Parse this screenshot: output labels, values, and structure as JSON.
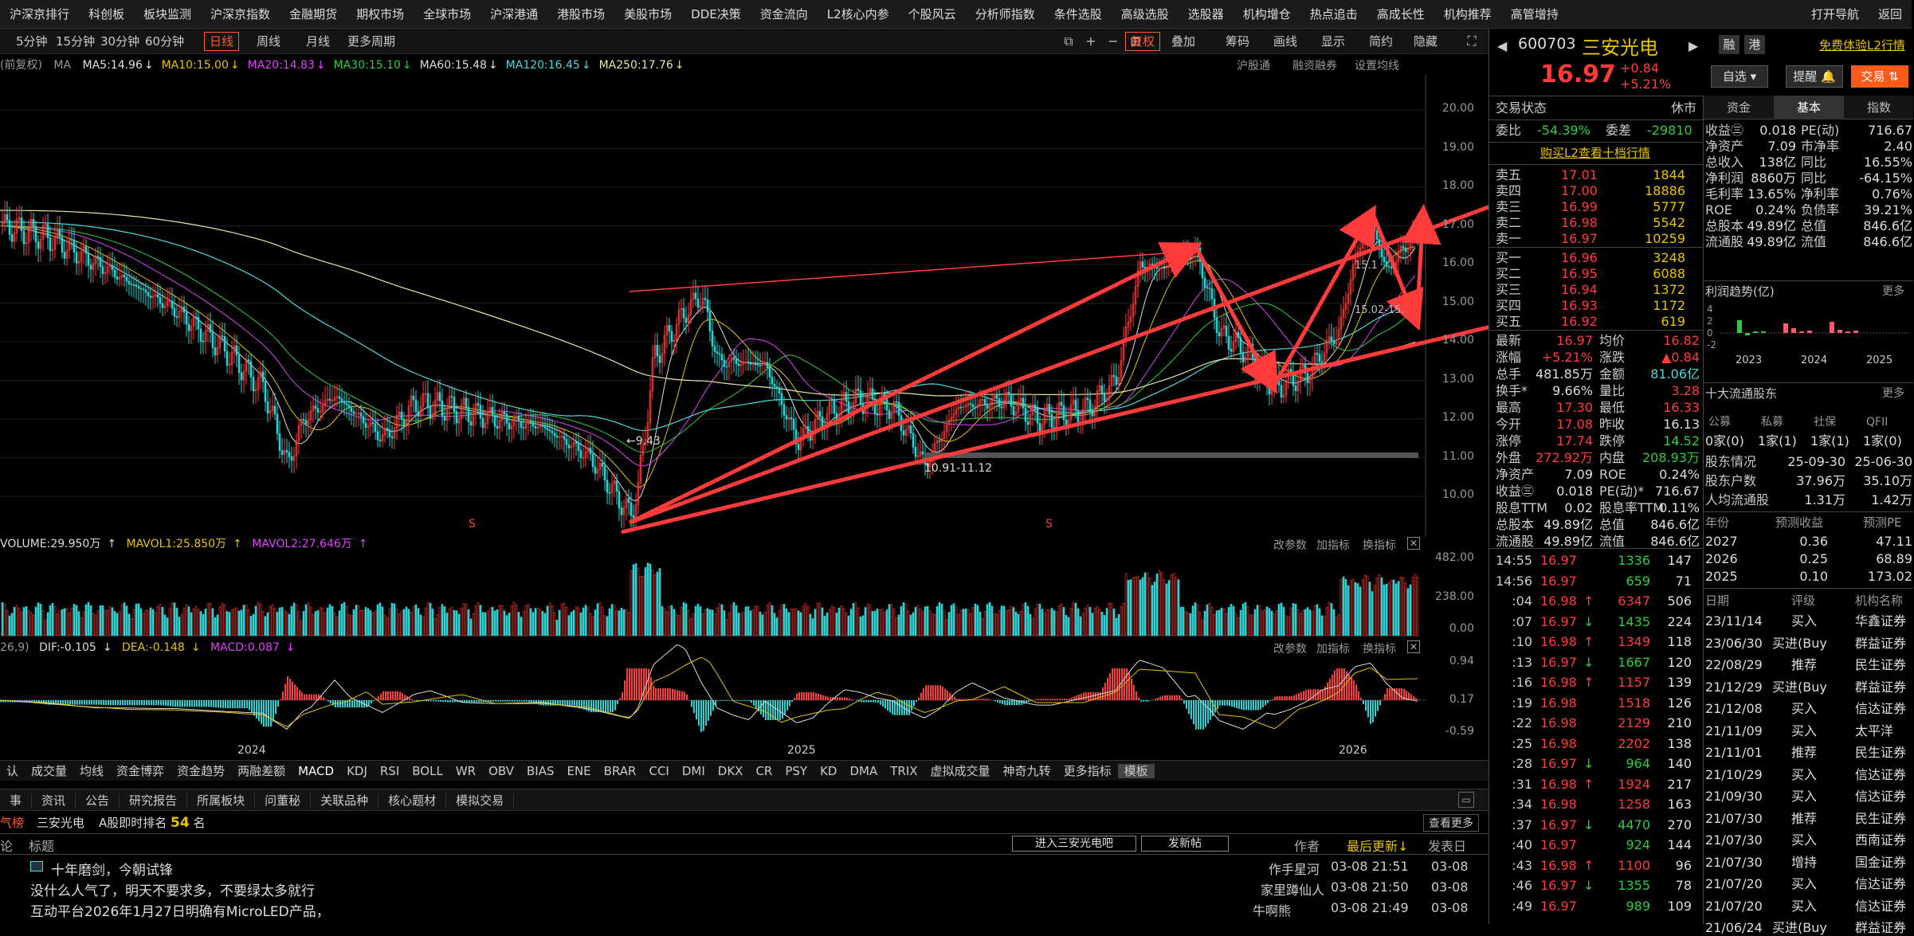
{
  "menu": [
    "沪深京排行",
    "科创板",
    "板块监测",
    "沪深京指数",
    "金融期货",
    "期权市场",
    "全球市场",
    "沪深港通",
    "港股市场",
    "美股市场",
    "DDE决策",
    "资金流向",
    "L2核心内参",
    "个股风云",
    "分析师指数",
    "条件选股",
    "高级选股",
    "选股器",
    "机构增仓",
    "热点追击",
    "高成长性",
    "机构推荐",
    "高管增持",
    "打开导航",
    "返回"
  ],
  "toolbar": {
    "periods": [
      "5分钟",
      "15分钟",
      "30分钟",
      "60分钟",
      "日线",
      "周线",
      "月线",
      "更多周期"
    ],
    "active": "日线",
    "right": [
      "复权",
      "叠加",
      "筹码",
      "画线",
      "显示",
      "简约",
      "隐藏"
    ]
  },
  "ma": {
    "prefix": "(前复权)",
    "label": "MA",
    "items": [
      {
        "t": "MA5:14.96",
        "c": "#e0e0e0"
      },
      {
        "t": "MA10:15.00",
        "c": "#e6c300"
      },
      {
        "t": "MA20:14.83",
        "c": "#e040fb"
      },
      {
        "t": "MA30:15.10",
        "c": "#2ecc40"
      },
      {
        "t": "MA60:15.48",
        "c": "#ddd"
      },
      {
        "t": "MA120:16.45",
        "c": "#4ad9d9"
      },
      {
        "t": "MA250:17.76",
        "c": "#e6e6a0"
      }
    ],
    "right": [
      "沪股通",
      "融资融券",
      "设置均线"
    ]
  },
  "price_axis": [
    "20.00",
    "19.00",
    "18.00",
    "17.00",
    "16.00",
    "15.00",
    "14.00",
    "13.00",
    "12.00",
    "11.00",
    "10.00"
  ],
  "annotations": {
    "low": "9.43",
    "range1": "10.91-11.12",
    "range2": "15.02-15.",
    "range3": "15.1"
  },
  "volume": {
    "label": "VOLUME:29.950万",
    "mavol1": "MAVOL1:25.850万",
    "mavol2": "MAVOL2:27.646万",
    "axis": [
      "482.00",
      "238.00",
      "0.00"
    ],
    "buttons": [
      "改参数",
      "加指标",
      "换指标"
    ]
  },
  "macd": {
    "label": "26,9)",
    "dif": "DIF:-0.105",
    "dea": "DEA:-0.148",
    "macd": "MACD:0.087",
    "axis": [
      "0.94",
      "0.17",
      "-0.59"
    ],
    "buttons": [
      "改参数",
      "加指标",
      "换指标"
    ]
  },
  "years": [
    "2024",
    "2025",
    "2026"
  ],
  "indicator_tabs": [
    "认",
    "成交量",
    "均线",
    "资金博弈",
    "资金趋势",
    "两融差额",
    "MACD",
    "KDJ",
    "RSI",
    "BOLL",
    "WR",
    "OBV",
    "BIAS",
    "ENE",
    "BRAR",
    "CCI",
    "DMI",
    "DKX",
    "CR",
    "PSY",
    "KD",
    "DMA",
    "TRIX",
    "虚拟成交量",
    "神奇九转",
    "更多指标",
    "模板"
  ],
  "news_tabs": [
    "事",
    "资讯",
    "公告",
    "研究报告",
    "所属板块",
    "问董秘",
    "关联品种",
    "核心题材",
    "模拟交易"
  ],
  "forum": {
    "name": "三安光电",
    "rank_label": "A股即时排名",
    "rank": "54",
    "rank_unit": "名",
    "more": "查看更多",
    "enter": "进入三安光电吧",
    "post": "发新帖",
    "cols": [
      "论",
      "标题",
      "作者",
      "最后更新↓",
      "发表日"
    ],
    "head": "气榜",
    "posts": [
      {
        "title": "十年磨剑，今朝试锋",
        "author": "作手星河",
        "updated": "03-08 21:51",
        "date": "03-08"
      },
      {
        "title": "没什么人气了，明天不要求多，不要绿太多就行",
        "author": "家里蹲仙人",
        "updated": "03-08 21:50",
        "date": "03-08"
      },
      {
        "title": "互动平台2026年1月27日明确有MicroLED产品，",
        "author": "牛啊熊",
        "updated": "03-08 21:49",
        "date": "03-08"
      }
    ]
  },
  "stock": {
    "code": "600703",
    "name": "三安光电",
    "price": "16.97",
    "change": "+0.84",
    "pct": "+5.21%",
    "tags": [
      "融",
      "港"
    ],
    "l2": "免费体验L2行情",
    "btn1": "自选",
    "btn2": "提醒",
    "btn3": "交易"
  },
  "trade_status": {
    "label": "交易状态",
    "value": "休市",
    "wb_label": "委比",
    "wb": "-54.39%",
    "wc_label": "委差",
    "wc": "-29810",
    "l2link": "购买L2查看十档行情"
  },
  "asks": [
    {
      "l": "卖五",
      "p": "17.01",
      "v": "1844"
    },
    {
      "l": "卖四",
      "p": "17.00",
      "v": "18886"
    },
    {
      "l": "卖三",
      "p": "16.99",
      "v": "5777"
    },
    {
      "l": "卖二",
      "p": "16.98",
      "v": "5542"
    },
    {
      "l": "卖一",
      "p": "16.97",
      "v": "10259"
    }
  ],
  "bids": [
    {
      "l": "买一",
      "p": "16.96",
      "v": "3248"
    },
    {
      "l": "买二",
      "p": "16.95",
      "v": "6088"
    },
    {
      "l": "买三",
      "p": "16.94",
      "v": "1372"
    },
    {
      "l": "买四",
      "p": "16.93",
      "v": "1172"
    },
    {
      "l": "买五",
      "p": "16.92",
      "v": "619"
    }
  ],
  "quote": [
    [
      "最新",
      "16.97",
      "red",
      "均价",
      "16.82",
      "red"
    ],
    [
      "涨幅",
      "+5.21%",
      "red",
      "涨跌",
      "▲0.84",
      "red"
    ],
    [
      "总手",
      "481.85万",
      "white",
      "金额",
      "81.06亿",
      "cyan"
    ],
    [
      "换手*",
      "9.66%",
      "white",
      "量比",
      "3.28",
      "red"
    ],
    [
      "最高",
      "17.30",
      "red",
      "最低",
      "16.33",
      "red"
    ],
    [
      "今开",
      "17.08",
      "red",
      "昨收",
      "16.13",
      "white"
    ],
    [
      "涨停",
      "17.74",
      "red",
      "跌停",
      "14.52",
      "green"
    ],
    [
      "外盘",
      "272.92万",
      "red",
      "内盘",
      "208.93万",
      "green"
    ],
    [
      "净资产",
      "7.09",
      "white",
      "ROE",
      "0.24%",
      "white"
    ],
    [
      "收益㊂",
      "0.018",
      "white",
      "PE(动)*",
      "716.67",
      "white"
    ],
    [
      "股息TTM",
      "0.02",
      "white",
      "股息率TTM",
      "0.11%",
      "white"
    ],
    [
      "总股本",
      "49.89亿",
      "white",
      "总值",
      "846.6亿",
      "white"
    ],
    [
      "流通股",
      "49.89亿",
      "white",
      "流值",
      "846.6亿",
      "white"
    ]
  ],
  "ticks": [
    {
      "t": "14:55",
      "p": "16.97",
      "a": "",
      "v": "1336",
      "n": "147",
      "vc": "green"
    },
    {
      "t": "14:56",
      "p": "16.97",
      "a": "",
      "v": "659",
      "n": "71",
      "vc": "green"
    },
    {
      "t": ":04",
      "p": "16.98",
      "a": "↑",
      "v": "6347",
      "n": "506",
      "vc": "red"
    },
    {
      "t": ":07",
      "p": "16.97",
      "a": "↓",
      "v": "1435",
      "n": "224",
      "vc": "green"
    },
    {
      "t": ":10",
      "p": "16.98",
      "a": "↑",
      "v": "1349",
      "n": "118",
      "vc": "red"
    },
    {
      "t": ":13",
      "p": "16.97",
      "a": "↓",
      "v": "1667",
      "n": "120",
      "vc": "green"
    },
    {
      "t": ":16",
      "p": "16.98",
      "a": "↑",
      "v": "1157",
      "n": "139",
      "vc": "red"
    },
    {
      "t": ":19",
      "p": "16.98",
      "a": "",
      "v": "1518",
      "n": "126",
      "vc": "red"
    },
    {
      "t": ":22",
      "p": "16.98",
      "a": "",
      "v": "2129",
      "n": "210",
      "vc": "red"
    },
    {
      "t": ":25",
      "p": "16.98",
      "a": "",
      "v": "2202",
      "n": "138",
      "vc": "red"
    },
    {
      "t": ":28",
      "p": "16.97",
      "a": "↓",
      "v": "964",
      "n": "140",
      "vc": "green"
    },
    {
      "t": ":31",
      "p": "16.98",
      "a": "↑",
      "v": "1924",
      "n": "217",
      "vc": "red"
    },
    {
      "t": ":34",
      "p": "16.98",
      "a": "",
      "v": "1258",
      "n": "163",
      "vc": "red"
    },
    {
      "t": ":37",
      "p": "16.97",
      "a": "↓",
      "v": "4470",
      "n": "270",
      "vc": "green"
    },
    {
      "t": ":40",
      "p": "16.97",
      "a": "",
      "v": "924",
      "n": "144",
      "vc": "green"
    },
    {
      "t": ":43",
      "p": "16.98",
      "a": "↑",
      "v": "1100",
      "n": "96",
      "vc": "red"
    },
    {
      "t": ":46",
      "p": "16.97",
      "a": "↓",
      "v": "1355",
      "n": "78",
      "vc": "green"
    },
    {
      "t": ":49",
      "p": "16.97",
      "a": "",
      "v": "989",
      "n": "109",
      "vc": "green"
    }
  ],
  "fund": {
    "tabs": [
      "资金",
      "基本",
      "指数"
    ],
    "active": "基本",
    "rows": [
      [
        "收益㊂",
        "0.018",
        "PE(动)",
        "716.67"
      ],
      [
        "净资产",
        "7.09",
        "市净率",
        "2.40"
      ],
      [
        "总收入",
        "138亿",
        "同比",
        "16.55%"
      ],
      [
        "净利润",
        "8860万",
        "同比",
        "-64.15%"
      ],
      [
        "毛利率",
        "13.65%",
        "净利率",
        "0.76%"
      ],
      [
        "ROE",
        "0.24%",
        "负债率",
        "39.21%"
      ],
      [
        "总股本",
        "49.89亿",
        "总值",
        "846.6亿"
      ],
      [
        "流通股",
        "49.89亿",
        "流值",
        "846.6亿"
      ]
    ],
    "profit_label": "利润趋势(亿)",
    "more": "更多",
    "profit_axis": [
      "4",
      "2",
      "0",
      "-2"
    ],
    "profit_years": [
      "2023",
      "2024",
      "2025"
    ],
    "holders_label": "十大流通股东",
    "holder_cols": [
      "公募",
      "私募",
      "社保",
      "QFII"
    ],
    "holder_vals": [
      "0家(0)",
      "1家(1)",
      "1家(1)",
      "1家(0)"
    ],
    "holders_rows": [
      [
        "股东情况",
        "25-09-30",
        "25-06-30"
      ],
      [
        "股东户数",
        "37.96万",
        "35.10万"
      ],
      [
        "人均流通股",
        "1.31万",
        "1.42万"
      ]
    ],
    "fc_cols": [
      "年份",
      "预测收益",
      "预测PE"
    ],
    "fc_rows": [
      [
        "2027",
        "0.36",
        "47.11"
      ],
      [
        "2026",
        "0.25",
        "68.89"
      ],
      [
        "2025",
        "0.10",
        "173.02"
      ]
    ],
    "rating_cols": [
      "日期",
      "评级",
      "机构名称"
    ],
    "ratings": [
      [
        "23/11/14",
        "买入",
        "华鑫证券"
      ],
      [
        "23/06/30",
        "买进(Buy",
        "群益证券"
      ],
      [
        "22/08/29",
        "推荐",
        "民生证券"
      ],
      [
        "21/12/29",
        "买进(Buy",
        "群益证券"
      ],
      [
        "21/12/08",
        "买入",
        "信达证券"
      ],
      [
        "21/11/09",
        "买入",
        "太平洋"
      ],
      [
        "21/11/01",
        "推荐",
        "民生证券"
      ],
      [
        "21/10/29",
        "买入",
        "信达证券"
      ],
      [
        "21/09/30",
        "买入",
        "信达证券"
      ],
      [
        "21/07/30",
        "推荐",
        "民生证券"
      ],
      [
        "21/07/30",
        "买入",
        "西南证券"
      ],
      [
        "21/07/30",
        "增持",
        "国金证券"
      ],
      [
        "21/07/20",
        "买入",
        "信达证券"
      ],
      [
        "21/07/20",
        "买入",
        "信达证券"
      ],
      [
        "21/06/24",
        "买进(Buy",
        "群益证券"
      ]
    ]
  }
}
